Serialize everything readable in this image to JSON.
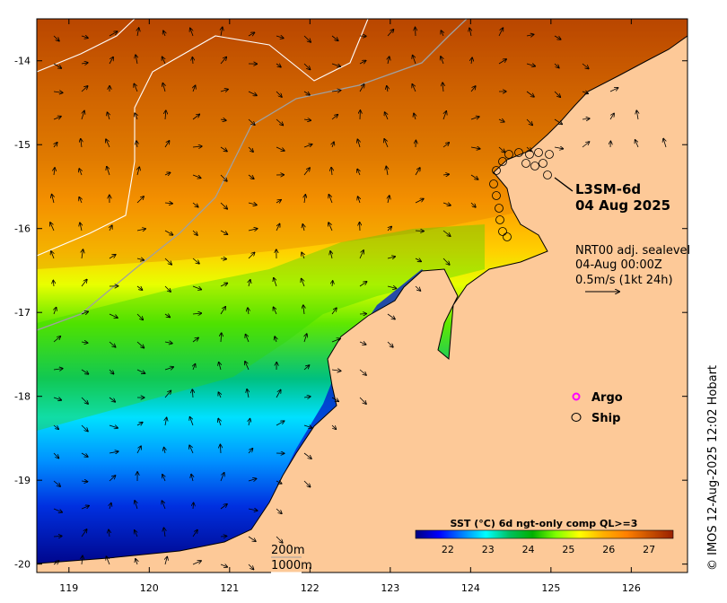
{
  "product": {
    "name": "L3SM-6d",
    "date": "04 Aug 2025"
  },
  "currents": {
    "source": "NRT00 adj. sealevel",
    "time": "04-Aug 00:00Z",
    "scale_label": "0.5m/s (1kt 24h)"
  },
  "legend": {
    "argo_label": "Argo",
    "argo_color": "#ff00ff",
    "ship_label": "Ship",
    "ship_color": "#000000"
  },
  "isobaths": {
    "shallow": "200m",
    "deep": "1000m",
    "shallow_color": "#a0a0a0",
    "deep_color": "#ffffff"
  },
  "colorbar": {
    "title": "SST (°C) 6d ngt-only comp QL>=3",
    "range": [
      21.2,
      27.6
    ],
    "ticks": [
      "22",
      "23",
      "24",
      "25",
      "26",
      "27"
    ],
    "stops": [
      "#00007f",
      "#0000ff",
      "#0080ff",
      "#00ffff",
      "#00c060",
      "#00b000",
      "#80ff00",
      "#ffff00",
      "#ffb000",
      "#ff8000",
      "#c85000",
      "#9a2000"
    ]
  },
  "axes": {
    "lon_ticks": [
      "119",
      "120",
      "121",
      "122",
      "123",
      "124",
      "125",
      "126"
    ],
    "lat_ticks": [
      "-14",
      "-15",
      "-16",
      "-17",
      "-18",
      "-19",
      "-20"
    ],
    "lon_range": [
      118.6,
      126.7
    ],
    "lat_range": [
      -20.1,
      -13.5
    ]
  },
  "land_color": "#fdc998",
  "credit": "© IMOS 12-Aug-2025 12:02 Hobart"
}
